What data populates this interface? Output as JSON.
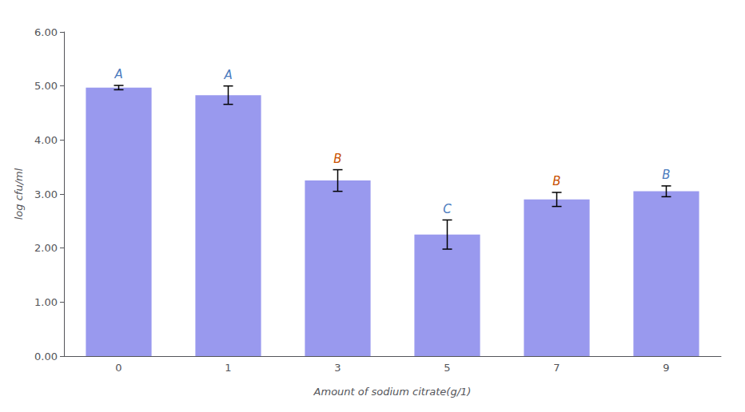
{
  "chart_data": {
    "type": "bar",
    "categories": [
      "0",
      "1",
      "3",
      "5",
      "7",
      "9"
    ],
    "values": [
      4.97,
      4.83,
      3.25,
      2.25,
      2.9,
      3.05
    ],
    "errors": [
      0.04,
      0.17,
      0.2,
      0.27,
      0.13,
      0.1
    ],
    "annotations": [
      "A",
      "A",
      "B",
      "C",
      "B",
      "B"
    ],
    "annotation_colors": [
      "#4B7BBE",
      "#4B7BBE",
      "#C85000",
      "#4B7BBE",
      "#C85000",
      "#4B7BBE"
    ],
    "color": "#9999EE",
    "xlabel": "Amount of sodium citrate(g/1)",
    "ylabel": "log cfu/ml",
    "ylim": [
      0.0,
      6.0
    ],
    "yticks": [
      {
        "value": 0.0,
        "label": "0.00"
      },
      {
        "value": 1.0,
        "label": "1.00"
      },
      {
        "value": 2.0,
        "label": "2.00"
      },
      {
        "value": 3.0,
        "label": "3.00"
      },
      {
        "value": 4.0,
        "label": "4.00"
      },
      {
        "value": 5.0,
        "label": "5.00"
      },
      {
        "value": 6.0,
        "label": "6.00"
      }
    ],
    "grid": false
  }
}
